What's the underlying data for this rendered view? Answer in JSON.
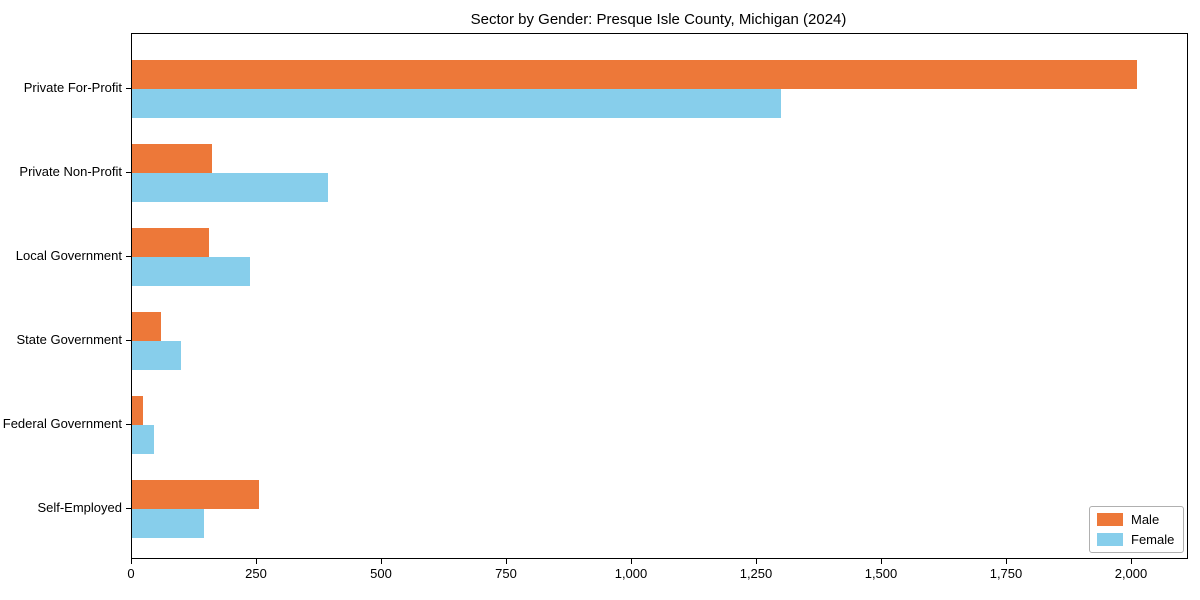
{
  "chart_data": {
    "type": "bar",
    "orientation": "horizontal",
    "title": "Sector by Gender: Presque Isle County, Michigan (2024)",
    "categories": [
      "Private For-Profit",
      "Private Non-Profit",
      "Local Government",
      "State Government",
      "Federal Government",
      "Self-Employed"
    ],
    "series": [
      {
        "name": "Male",
        "color": "#ed7839",
        "values": [
          2010,
          160,
          153,
          58,
          21,
          253
        ]
      },
      {
        "name": "Female",
        "color": "#87ceeb",
        "values": [
          1298,
          392,
          235,
          97,
          43,
          143
        ]
      }
    ],
    "xlabel": "",
    "ylabel": "",
    "xlim": [
      0,
      2110
    ],
    "xticks": [
      {
        "value": 0,
        "label": "0"
      },
      {
        "value": 250,
        "label": "250"
      },
      {
        "value": 500,
        "label": "500"
      },
      {
        "value": 750,
        "label": "750"
      },
      {
        "value": 1000,
        "label": "1,000"
      },
      {
        "value": 1250,
        "label": "1,250"
      },
      {
        "value": 1500,
        "label": "1,500"
      },
      {
        "value": 1750,
        "label": "1,750"
      },
      {
        "value": 2000,
        "label": "2,000"
      }
    ],
    "grid": false,
    "legend_position": "lower right",
    "plot_border_color": "#000000",
    "background_color": "#ffffff"
  }
}
